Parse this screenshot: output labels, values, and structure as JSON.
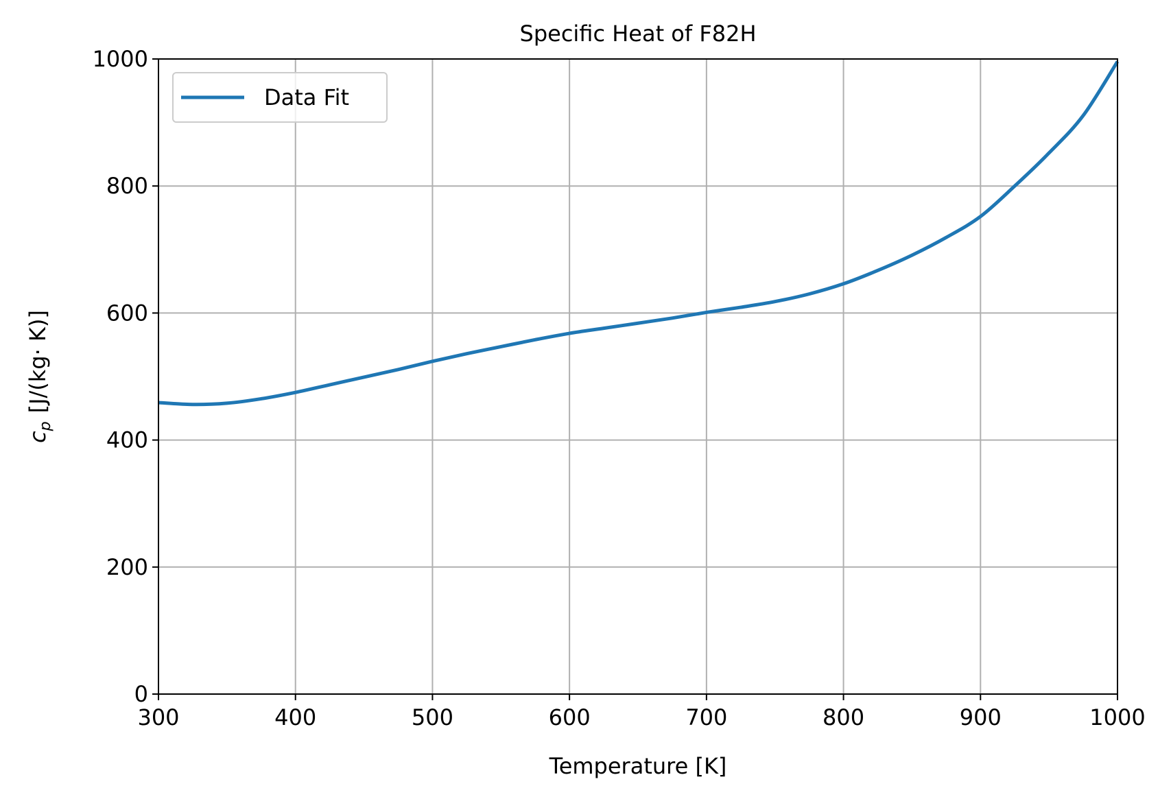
{
  "chart_data": {
    "type": "line",
    "title": "Specific Heat of F82H",
    "xlabel": "Temperature [K]",
    "ylabel": {
      "symbol": "c",
      "subscript": "p",
      "unit": "[J/(kg· K)]"
    },
    "xlim": [
      300,
      1000
    ],
    "ylim": [
      0,
      1000
    ],
    "xticks": [
      300,
      400,
      500,
      600,
      700,
      800,
      900,
      1000
    ],
    "yticks": [
      0,
      200,
      400,
      600,
      800,
      1000
    ],
    "grid": true,
    "legend_position": "upper left",
    "series": [
      {
        "name": "Data Fit",
        "color": "#1f77b4",
        "x": [
          300,
          325,
          350,
          375,
          400,
          425,
          450,
          475,
          500,
          525,
          550,
          575,
          600,
          625,
          650,
          675,
          700,
          725,
          750,
          775,
          800,
          825,
          850,
          875,
          900,
          925,
          950,
          975,
          1000
        ],
        "y": [
          459,
          456,
          458,
          465,
          475,
          487,
          499,
          511,
          524,
          536,
          547,
          558,
          568,
          576,
          584,
          592,
          601,
          609,
          618,
          630,
          646,
          667,
          691,
          719,
          752,
          800,
          852,
          911,
          996
        ]
      }
    ]
  }
}
